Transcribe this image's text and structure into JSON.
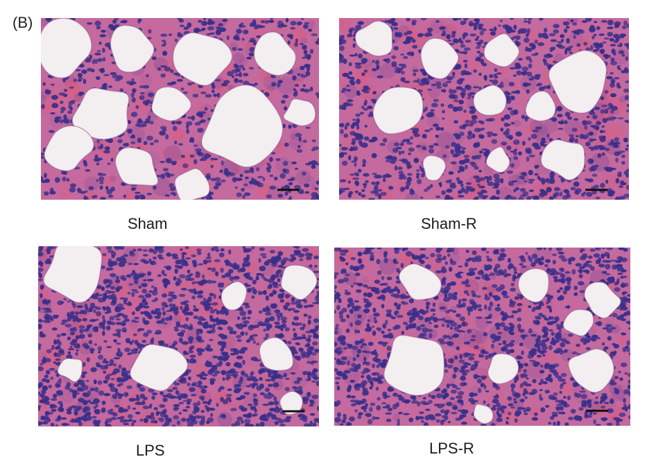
{
  "figure": {
    "panel_label": "(B)",
    "panels": [
      {
        "caption": "Sham"
      },
      {
        "caption": "Sham-R"
      },
      {
        "caption": "LPS"
      },
      {
        "caption": "LPS-R"
      }
    ]
  },
  "colors": {
    "tissue": "#c46a9e",
    "tissue_dark": "#8e4f95",
    "nuclei": "#3a2f8a",
    "airspace": "#f3eeef",
    "erythrocyte": "#e05a7a",
    "scale_bar": "#111111"
  }
}
